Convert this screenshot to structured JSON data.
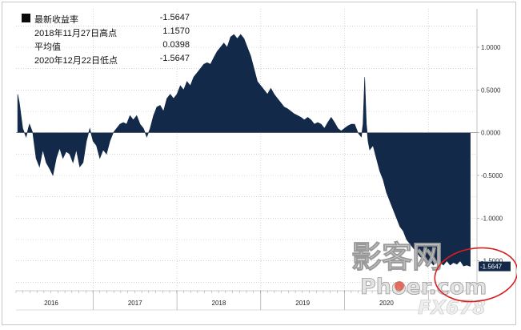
{
  "legend": {
    "items": [
      {
        "label": "最新收益率",
        "value": "-1.5647"
      },
      {
        "label": "2018年11月27日高点",
        "value": "1.1570"
      },
      {
        "label": "平均值",
        "value": "0.0398"
      },
      {
        "label": "2020年12月22日低点",
        "value": "-1.5647"
      }
    ]
  },
  "watermark": {
    "line1": "影客网",
    "line2": "Phoer.com",
    "line3": "FX678"
  },
  "chart_data": {
    "type": "area",
    "title": "",
    "xlabel": "",
    "ylabel": "",
    "ylim": [
      -1.85,
      1.45
    ],
    "xlim": [
      2015.58,
      2021.08
    ],
    "y_ticks": [
      1.0,
      0.5,
      0.0,
      -0.5,
      -1.0,
      -1.5
    ],
    "y_tick_labels": [
      "1.0000",
      "0.5000",
      "0.0000",
      "-0.5000",
      "-1.0000",
      "-1.5000"
    ],
    "x_tick_labels": [
      {
        "label": "2016",
        "x": 2016.0
      },
      {
        "label": "2017",
        "x": 2017.0
      },
      {
        "label": "2018",
        "x": 2018.0
      },
      {
        "label": "2019",
        "x": 2019.0
      },
      {
        "label": "2020",
        "x": 2020.0
      }
    ],
    "year_boundaries": [
      2016.5,
      2017.5,
      2018.5,
      2019.5,
      2020.5
    ],
    "fill_color": "#13294a",
    "grid": true,
    "legend_placement": "top-left",
    "current_value": -1.5647,
    "current_label": "-1.5647",
    "series": [
      {
        "x": [
          2015.6,
          2015.62,
          2015.66,
          2015.7,
          2015.74,
          2015.78,
          2015.82,
          2015.86,
          2015.9,
          2015.94,
          2015.98,
          2016.02,
          2016.06,
          2016.1,
          2016.14,
          2016.18,
          2016.22,
          2016.26,
          2016.3,
          2016.34,
          2016.38,
          2016.42,
          2016.46,
          2016.5,
          2016.54,
          2016.58,
          2016.62,
          2016.66,
          2016.7,
          2016.74,
          2016.78,
          2016.82,
          2016.86,
          2016.9,
          2016.94,
          2016.98,
          2017.02,
          2017.06,
          2017.1,
          2017.14,
          2017.18,
          2017.22,
          2017.26,
          2017.3,
          2017.34,
          2017.38,
          2017.42,
          2017.46,
          2017.5,
          2017.54,
          2017.58,
          2017.62,
          2017.66,
          2017.7,
          2017.74,
          2017.78,
          2017.82,
          2017.86,
          2017.9,
          2017.94,
          2017.98,
          2018.02,
          2018.06,
          2018.1,
          2018.14,
          2018.18,
          2018.22,
          2018.26,
          2018.3,
          2018.34,
          2018.38,
          2018.42,
          2018.46,
          2018.5,
          2018.54,
          2018.58,
          2018.62,
          2018.66,
          2018.7,
          2018.74,
          2018.78,
          2018.82,
          2018.86,
          2018.9,
          2018.94,
          2018.98,
          2019.02,
          2019.06,
          2019.1,
          2019.14,
          2019.18,
          2019.22,
          2019.26,
          2019.3,
          2019.34,
          2019.38,
          2019.42,
          2019.46,
          2019.5,
          2019.54,
          2019.58,
          2019.62,
          2019.66,
          2019.7,
          2019.72,
          2019.74,
          2019.76,
          2019.78,
          2019.8,
          2019.84,
          2019.88,
          2019.92,
          2019.96,
          2020.0,
          2020.04,
          2020.08,
          2020.12,
          2020.16,
          2020.2,
          2020.24,
          2020.28,
          2020.32,
          2020.36,
          2020.4,
          2020.44,
          2020.48,
          2020.52,
          2020.56,
          2020.6,
          2020.64,
          2020.68,
          2020.72,
          2020.76,
          2020.8,
          2020.84,
          2020.88,
          2020.92,
          2020.96,
          2021.0
        ],
        "y": [
          0.45,
          0.35,
          0.05,
          -0.05,
          0.1,
          0.0,
          -0.3,
          -0.4,
          -0.2,
          -0.35,
          -0.42,
          -0.5,
          -0.3,
          -0.18,
          -0.3,
          -0.22,
          -0.25,
          -0.35,
          -0.2,
          -0.4,
          -0.35,
          -0.1,
          0.05,
          -0.1,
          -0.15,
          -0.3,
          -0.2,
          -0.25,
          -0.1,
          0.0,
          0.05,
          0.1,
          0.12,
          0.1,
          0.2,
          0.15,
          0.2,
          0.1,
          0.05,
          -0.05,
          0.05,
          0.2,
          0.3,
          0.32,
          0.25,
          0.4,
          0.45,
          0.4,
          0.45,
          0.55,
          0.5,
          0.6,
          0.55,
          0.65,
          0.7,
          0.75,
          0.8,
          0.82,
          0.8,
          0.88,
          0.95,
          1.0,
          1.05,
          1.0,
          1.12,
          1.15,
          1.1,
          1.15,
          1.1,
          1.0,
          0.9,
          0.75,
          0.6,
          0.55,
          0.5,
          0.45,
          0.52,
          0.45,
          0.4,
          0.35,
          0.3,
          0.28,
          0.25,
          0.22,
          0.2,
          0.18,
          0.15,
          0.18,
          0.15,
          0.1,
          0.12,
          0.1,
          0.05,
          0.12,
          0.18,
          0.12,
          0.05,
          0.02,
          0.05,
          0.08,
          0.1,
          0.1,
          0.0,
          -0.05,
          0.1,
          0.65,
          0.1,
          -0.1,
          -0.2,
          -0.15,
          -0.3,
          -0.45,
          -0.55,
          -0.7,
          -0.8,
          -0.9,
          -1.0,
          -1.1,
          -1.15,
          -1.25,
          -1.3,
          -1.35,
          -1.4,
          -1.45,
          -1.48,
          -1.52,
          -1.5,
          -1.55,
          -1.5,
          -1.52,
          -1.55,
          -1.5,
          -1.55,
          -1.52,
          -1.54,
          -1.5,
          -1.56,
          -1.55,
          -1.5647
        ]
      }
    ]
  }
}
